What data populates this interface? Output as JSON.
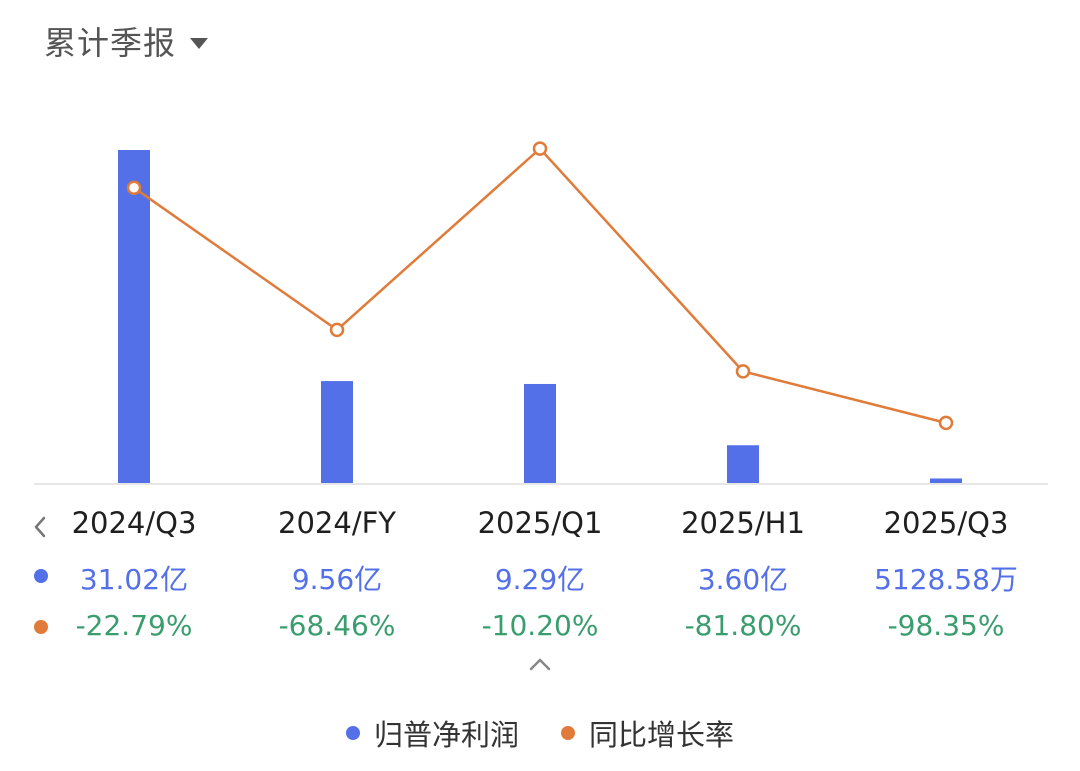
{
  "header": {
    "title": "累计季报"
  },
  "colors": {
    "bar": "#5470e8",
    "line": "#e07b39",
    "growth_text": "#3a9d6e"
  },
  "chart_data": {
    "type": "bar",
    "categories": [
      "2024/Q3",
      "2024/FY",
      "2025/Q1",
      "2025/H1",
      "2025/Q3"
    ],
    "series": [
      {
        "name": "归普净利润",
        "type": "bar",
        "values": [
          310200,
          95600,
          92900,
          36000,
          5128.58
        ],
        "unit": "万",
        "labels": [
          "31.02亿",
          "9.56亿",
          "9.29亿",
          "3.60亿",
          "5128.58万"
        ]
      },
      {
        "name": "同比增长率",
        "type": "line",
        "values": [
          -22.79,
          -68.46,
          -10.2,
          -81.8,
          -98.35
        ],
        "unit": "%",
        "labels": [
          "-22.79%",
          "-68.46%",
          "-10.20%",
          "-81.80%",
          "-98.35%"
        ]
      }
    ],
    "y_bar_range": [
      0,
      310200
    ],
    "y_line_range": [
      -118,
      -1
    ],
    "legend_position": "bottom"
  },
  "legend": [
    {
      "label": "归普净利润",
      "color": "#5470e8"
    },
    {
      "label": "同比增长率",
      "color": "#e07b39"
    }
  ],
  "icons": {
    "prev": "chevron-left-icon",
    "collapse": "chevron-up-icon",
    "dropdown": "caret-down-icon"
  }
}
